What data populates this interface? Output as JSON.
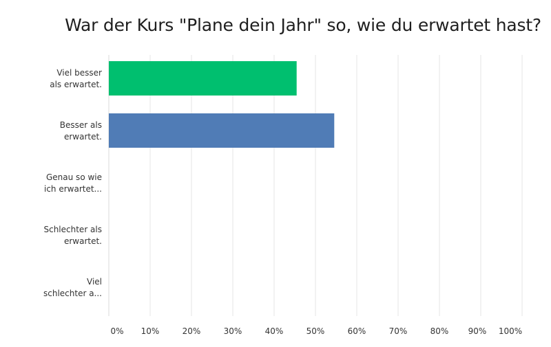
{
  "chart_data": {
    "type": "bar",
    "orientation": "horizontal",
    "title": "War der Kurs \"Plane dein Jahr\" so, wie du erwartet hast?",
    "categories": [
      [
        "Viel besser",
        "als erwartet."
      ],
      [
        "Besser als",
        "erwartet."
      ],
      [
        "Genau so wie",
        "ich erwartet..."
      ],
      [
        "Schlechter als",
        "erwartet."
      ],
      [
        "Viel",
        "schlechter a..."
      ]
    ],
    "values": [
      45.45,
      54.55,
      0,
      0,
      0
    ],
    "bar_colors": [
      "#00bf6f",
      "#507cb6",
      "#507cb6",
      "#507cb6",
      "#507cb6"
    ],
    "x_ticks": [
      "0%",
      "10%",
      "20%",
      "30%",
      "40%",
      "50%",
      "60%",
      "70%",
      "80%",
      "90%",
      "100%"
    ],
    "xlim": [
      0,
      100
    ],
    "grid": true,
    "legend": "none"
  }
}
